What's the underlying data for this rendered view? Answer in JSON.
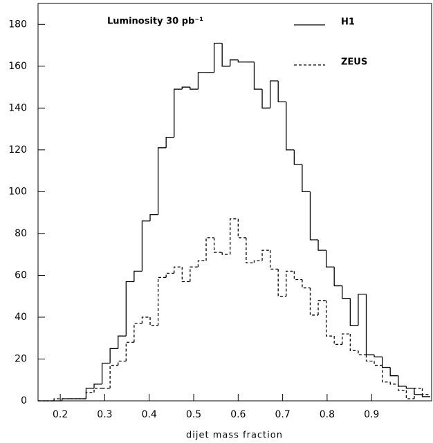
{
  "chart_data": {
    "type": "histogram",
    "annotation": "Luminosity 30 pb⁻¹",
    "x_label": "dijet mass fraction",
    "bins": [
      0.15,
      0.168,
      0.186,
      0.204,
      0.222,
      0.24,
      0.258,
      0.276,
      0.294,
      0.312,
      0.33,
      0.348,
      0.366,
      0.384,
      0.402,
      0.42,
      0.438,
      0.456,
      0.474,
      0.492,
      0.51,
      0.528,
      0.546,
      0.564,
      0.582,
      0.6,
      0.618,
      0.636,
      0.654,
      0.672,
      0.69,
      0.708,
      0.726,
      0.744,
      0.762,
      0.78,
      0.798,
      0.816,
      0.834,
      0.852,
      0.87,
      0.888,
      0.906,
      0.924,
      0.942,
      0.96,
      0.978,
      0.996,
      1.014,
      1.032
    ],
    "series": [
      {
        "name": "H1",
        "color": "#000000",
        "line_style": "solid",
        "values": [
          0,
          0,
          0,
          1,
          1,
          1,
          6,
          8,
          18,
          25,
          31,
          57,
          62,
          86,
          89,
          121,
          126,
          149,
          150,
          149,
          157,
          157,
          171,
          160,
          163,
          162,
          162,
          149,
          140,
          153,
          143,
          120,
          113,
          100,
          77,
          72,
          64,
          55,
          49,
          36,
          51,
          22,
          21,
          16,
          12,
          7,
          6,
          3,
          2
        ]
      },
      {
        "name": "ZEUS",
        "color": "#000000",
        "line_style": "dashed",
        "values": [
          0,
          0,
          1,
          1,
          1,
          1,
          4,
          6,
          6,
          17,
          19,
          28,
          37,
          40,
          36,
          59,
          61,
          64,
          57,
          64,
          67,
          78,
          71,
          70,
          87,
          78,
          66,
          67,
          72,
          63,
          50,
          62,
          58,
          54,
          41,
          48,
          31,
          27,
          32,
          24,
          22,
          19,
          17,
          9,
          8,
          5,
          1,
          6,
          3
        ]
      }
    ],
    "xlim": [
      0.15,
      1.035
    ],
    "xticks": [
      0.2,
      0.3,
      0.4,
      0.5,
      0.6,
      0.7,
      0.8,
      0.9
    ],
    "ylim": [
      0,
      190
    ],
    "yticks": [
      0,
      20,
      40,
      60,
      80,
      100,
      120,
      140,
      160,
      180
    ],
    "legend": "top-right"
  }
}
